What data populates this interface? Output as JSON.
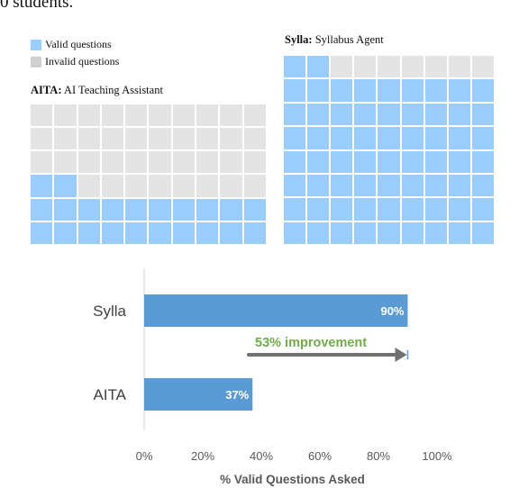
{
  "caption": "0 students.",
  "colors": {
    "valid": "#99ccff",
    "invalid": "#e4e4e4",
    "bar": "#5b9bd5",
    "arrow": "#707070",
    "improvement": "#70ad47"
  },
  "legend": {
    "valid_label": "Valid questions",
    "invalid_label": "Invalid questions"
  },
  "aita_grid": {
    "title_bold": "AITA:",
    "title_rest": " AI Teaching Assistant",
    "rows": 6,
    "cols": 10,
    "valid_cells": 22
  },
  "sylla_grid": {
    "title_bold": "Sylla:",
    "title_rest": " Syllabus Agent",
    "rows": 8,
    "cols": 9,
    "valid_cells": 65
  },
  "chart_data": {
    "type": "bar",
    "orientation": "horizontal",
    "categories": [
      "Sylla",
      "AITA"
    ],
    "values": [
      90,
      37
    ],
    "value_labels": [
      "90%",
      "37%"
    ],
    "xlabel": "% Valid Questions Asked",
    "xlim": [
      0,
      100
    ],
    "ticks": [
      0,
      20,
      40,
      60,
      80,
      100
    ],
    "tick_labels": [
      "0%",
      "20%",
      "40%",
      "60%",
      "80%",
      "100%"
    ],
    "annotation": {
      "text": "53% improvement",
      "from": 37,
      "to": 90
    }
  }
}
